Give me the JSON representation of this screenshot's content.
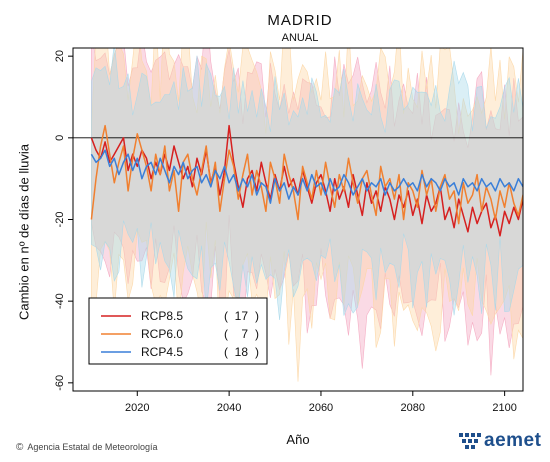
{
  "chart_data": {
    "type": "line",
    "title": "MADRID",
    "subtitle": "ANUAL",
    "xlabel": "Año",
    "ylabel": "Cambio en nº de días de lluvia",
    "xlim": [
      2006,
      2104
    ],
    "ylim": [
      -62,
      22
    ],
    "xticks": [
      2020,
      2040,
      2060,
      2080,
      2100
    ],
    "yticks": [
      20,
      0,
      -20,
      -40,
      -60
    ],
    "zero_line": true,
    "legend_position": "bottom-left",
    "x_start": 2010,
    "series": [
      {
        "name": "RCP8.5",
        "count": "17",
        "color": "#d62020",
        "band_color": "#f4a7c0",
        "values": [
          0,
          -3,
          -5,
          -1,
          -6,
          -4,
          -2,
          0,
          -8,
          -4,
          -7,
          -3,
          -5,
          -10,
          -6,
          -9,
          -4,
          -8,
          -2,
          -6,
          -10,
          -7,
          -12,
          -5,
          -9,
          -3,
          -11,
          -7,
          -14,
          -8,
          3,
          -6,
          -12,
          -17,
          -10,
          -8,
          -13,
          -6,
          -11,
          -15,
          -9,
          -13,
          -7,
          -12,
          -10,
          -14,
          -8,
          -12,
          -16,
          -11,
          -9,
          -13,
          -18,
          -10,
          -15,
          -12,
          -17,
          -9,
          -14,
          -19,
          -11,
          -16,
          -13,
          -18,
          -12,
          -15,
          -20,
          -14,
          -17,
          -13,
          -19,
          -15,
          -21,
          -14,
          -18,
          -16,
          -12,
          -20,
          -17,
          -22,
          -15,
          -19,
          -23,
          -17,
          -21,
          -18,
          -16,
          -22,
          -19,
          -24,
          -18,
          -21,
          -17,
          -20,
          -15,
          -19,
          -21
        ]
      },
      {
        "name": "RCP6.0",
        "count": "7",
        "color": "#f08030",
        "band_color": "#fcd6a4",
        "values": [
          -20,
          -10,
          -2,
          3,
          -4,
          -11,
          -6,
          -2,
          -13,
          -5,
          1,
          -3,
          -7,
          -13,
          -4,
          -9,
          -2,
          -13,
          -8,
          -18,
          -6,
          -4,
          -10,
          -14,
          -8,
          -2,
          -12,
          -6,
          -18,
          -10,
          -3,
          -7,
          -15,
          -9,
          -4,
          -14,
          -8,
          -12,
          -18,
          -6,
          -10,
          -16,
          -4,
          -9,
          -13,
          -20,
          -7,
          -11,
          -15,
          -8,
          -14,
          -6,
          -12,
          -17,
          -9,
          -13,
          -5,
          -11,
          -16,
          -10,
          -8,
          -14,
          -19,
          -7,
          -12,
          -10,
          -15,
          -9,
          -20,
          -11,
          -13,
          -17,
          -8,
          -14,
          -10,
          -18,
          -12,
          -9,
          -15,
          -13,
          -21,
          -11,
          -16,
          -14,
          -9,
          -18,
          -12,
          -15,
          -20,
          -13,
          -17,
          -11,
          -16,
          -19,
          -14,
          -18,
          -12
        ]
      },
      {
        "name": "RCP4.5",
        "count": "18",
        "color": "#3a7fd8",
        "band_color": "#a8d8ea",
        "values": [
          -4,
          -6,
          -5,
          -3,
          -7,
          -5,
          -9,
          -6,
          -4,
          -8,
          -5,
          -10,
          -7,
          -6,
          -9,
          -5,
          -8,
          -11,
          -7,
          -9,
          -6,
          -10,
          -8,
          -7,
          -11,
          -9,
          -12,
          -8,
          -10,
          -7,
          -11,
          -9,
          -13,
          -10,
          -12,
          -9,
          -14,
          -11,
          -12,
          -16,
          -10,
          -13,
          -11,
          -15,
          -12,
          -14,
          -10,
          -13,
          -9,
          -12,
          -11,
          -14,
          -10,
          -13,
          -12,
          -9,
          -11,
          -14,
          -12,
          -10,
          -13,
          -11,
          -12,
          -10,
          -14,
          -11,
          -13,
          -12,
          -10,
          -12,
          -11,
          -13,
          -9,
          -12,
          -10,
          -11,
          -13,
          -10,
          -12,
          -11,
          -14,
          -10,
          -12,
          -11,
          -13,
          -10,
          -12,
          -11,
          -13,
          -10,
          -12,
          -11,
          -13,
          -10,
          -12,
          -11,
          -10
        ]
      }
    ]
  },
  "footer": {
    "credit": "Agencia Estatal de Meteorología",
    "copyright_symbol": "©",
    "logo_text": "aemet"
  }
}
